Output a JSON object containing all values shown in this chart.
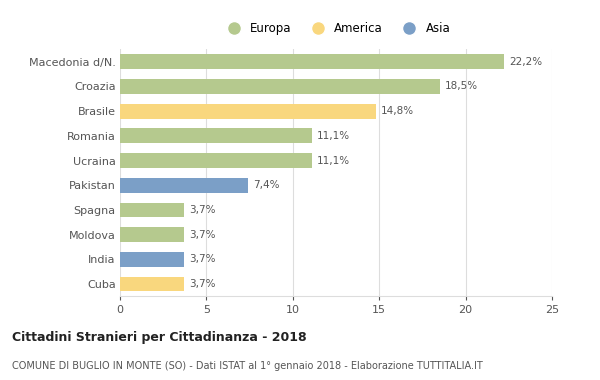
{
  "countries": [
    "Macedonia d/N.",
    "Croazia",
    "Brasile",
    "Romania",
    "Ucraina",
    "Pakistan",
    "Spagna",
    "Moldova",
    "India",
    "Cuba"
  ],
  "values": [
    22.2,
    18.5,
    14.8,
    11.1,
    11.1,
    7.4,
    3.7,
    3.7,
    3.7,
    3.7
  ],
  "labels": [
    "22,2%",
    "18,5%",
    "14,8%",
    "11,1%",
    "11,1%",
    "7,4%",
    "3,7%",
    "3,7%",
    "3,7%",
    "3,7%"
  ],
  "categories": [
    "Europa",
    "Europa",
    "America",
    "Europa",
    "Europa",
    "Asia",
    "Europa",
    "Europa",
    "Asia",
    "America"
  ],
  "color_europa": "#b5c98e",
  "color_america": "#f9d77e",
  "color_asia": "#7b9fc7",
  "legend_europa": "Europa",
  "legend_america": "America",
  "legend_asia": "Asia",
  "title_bold": "Cittadini Stranieri per Cittadinanza - 2018",
  "subtitle": "COMUNE DI BUGLIO IN MONTE (SO) - Dati ISTAT al 1° gennaio 2018 - Elaborazione TUTTITALIA.IT",
  "xlim": [
    0,
    25
  ],
  "xticks": [
    0,
    5,
    10,
    15,
    20,
    25
  ],
  "background_color": "#ffffff",
  "grid_color": "#dddddd"
}
